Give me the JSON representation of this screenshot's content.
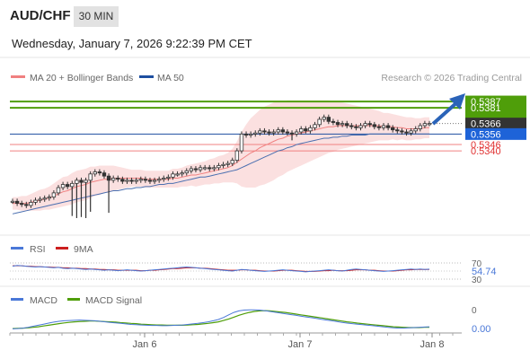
{
  "header": {
    "symbol": "AUD/CHF",
    "timeframe": "30 MIN",
    "datetime": "Wednesday, January 7, 2026 9:22:39 PM CET"
  },
  "colors": {
    "price_line": "#333333",
    "bollinger_fill": "#fadada",
    "ma20": "#f08080",
    "ma50": "#1e4fa0",
    "target_green": "#4f9e0a",
    "support_red": "#f08080",
    "current_price_box": "#333333",
    "ma50_box": "#1e63d8",
    "arrow": "#2a63b8",
    "rsi": "#4a78d8",
    "rsi_ma": "#cc1f1f",
    "macd": "#4a78d8",
    "macd_signal": "#4f9e0a"
  },
  "chart_data": [
    {
      "type": "candlestick",
      "panel": "price",
      "legend": [
        {
          "name": "MA 20 + Bollinger Bands",
          "color": "#f08080"
        },
        {
          "name": "MA 50",
          "color": "#1e4fa0"
        }
      ],
      "copyright": "Research © 2026 Trading Central",
      "x_ticks": [
        "Jan 6",
        "Jan 7",
        "Jan 8"
      ],
      "levels": [
        {
          "value": 0.5387,
          "label": "0.5387",
          "kind": "target",
          "color": "#4f9e0a"
        },
        {
          "value": 0.5381,
          "label": "0.5381",
          "kind": "target",
          "color": "#4f9e0a"
        },
        {
          "value": 0.5366,
          "label": "0.5366",
          "kind": "last",
          "color": "#333333"
        },
        {
          "value": 0.5356,
          "label": "0.5356",
          "kind": "ma50",
          "color": "#1e63d8"
        },
        {
          "value": 0.5346,
          "label": "0.5346",
          "kind": "support",
          "color": "#f08080"
        },
        {
          "value": 0.534,
          "label": "0.5340",
          "kind": "support",
          "color": "#f08080"
        }
      ],
      "close": [
        0.5292,
        0.529,
        0.5289,
        0.5288,
        0.5291,
        0.5293,
        0.5294,
        0.5295,
        0.5296,
        0.53,
        0.5305,
        0.5308,
        0.5306,
        0.5309,
        0.5312,
        0.531,
        0.5312,
        0.5318,
        0.532,
        0.5319,
        0.5316,
        0.5312,
        0.5314,
        0.5313,
        0.5311,
        0.5312,
        0.5311,
        0.5312,
        0.5313,
        0.5312,
        0.5311,
        0.5312,
        0.5313,
        0.5314,
        0.5315,
        0.5318,
        0.5318,
        0.5319,
        0.5321,
        0.5323,
        0.5322,
        0.5324,
        0.5324,
        0.5323,
        0.5324,
        0.5326,
        0.5327,
        0.5328,
        0.5331,
        0.534,
        0.5356,
        0.5355,
        0.5356,
        0.5357,
        0.5359,
        0.5358,
        0.5357,
        0.5358,
        0.536,
        0.5358,
        0.5357,
        0.5356,
        0.5358,
        0.5361,
        0.5359,
        0.5362,
        0.5365,
        0.537,
        0.5372,
        0.5368,
        0.5367,
        0.5365,
        0.5366,
        0.5364,
        0.5363,
        0.5362,
        0.5364,
        0.5366,
        0.5365,
        0.5363,
        0.5362,
        0.5364,
        0.5362,
        0.536,
        0.5359,
        0.5358,
        0.5357,
        0.5359,
        0.5361,
        0.5364,
        0.5366,
        0.5366
      ],
      "ma20": [
        0.529,
        0.529,
        0.529,
        0.529,
        0.5291,
        0.5292,
        0.5293,
        0.5294,
        0.5295,
        0.5297,
        0.5299,
        0.5301,
        0.5302,
        0.5304,
        0.5306,
        0.5307,
        0.5308,
        0.531,
        0.5311,
        0.5312,
        0.5313,
        0.5313,
        0.5314,
        0.5314,
        0.5314,
        0.5314,
        0.5314,
        0.5314,
        0.5314,
        0.5313,
        0.5313,
        0.5313,
        0.5313,
        0.5313,
        0.5313,
        0.5314,
        0.5314,
        0.5315,
        0.5316,
        0.5317,
        0.5317,
        0.5318,
        0.5319,
        0.532,
        0.5321,
        0.5322,
        0.5323,
        0.5324,
        0.5326,
        0.5329,
        0.5332,
        0.5335,
        0.5338,
        0.534,
        0.5343,
        0.5345,
        0.5347,
        0.5349,
        0.5351,
        0.5352,
        0.5354,
        0.5355,
        0.5356,
        0.5357,
        0.5358,
        0.5359,
        0.536,
        0.5361,
        0.5362,
        0.5363,
        0.5363,
        0.5364,
        0.5364,
        0.5364,
        0.5364,
        0.5364,
        0.5364,
        0.5364,
        0.5364,
        0.5364,
        0.5364,
        0.5363,
        0.5363,
        0.5363,
        0.5362,
        0.5362,
        0.5361,
        0.5361,
        0.5361,
        0.5361,
        0.5362,
        0.5362
      ],
      "ma50": [
        0.528,
        0.5281,
        0.5282,
        0.5283,
        0.5284,
        0.5285,
        0.5286,
        0.5287,
        0.5288,
        0.5289,
        0.529,
        0.5291,
        0.5292,
        0.5293,
        0.5294,
        0.5295,
        0.5296,
        0.5297,
        0.5298,
        0.5299,
        0.53,
        0.5301,
        0.5302,
        0.5302,
        0.5303,
        0.5304,
        0.5304,
        0.5305,
        0.5305,
        0.5306,
        0.5306,
        0.5307,
        0.5308,
        0.5308,
        0.5309,
        0.5309,
        0.531,
        0.5311,
        0.5312,
        0.5313,
        0.5314,
        0.5315,
        0.5315,
        0.5316,
        0.5317,
        0.5318,
        0.5319,
        0.532,
        0.5321,
        0.5322,
        0.5324,
        0.5326,
        0.5328,
        0.533,
        0.5332,
        0.5334,
        0.5336,
        0.5338,
        0.534,
        0.5341,
        0.5343,
        0.5344,
        0.5346,
        0.5347,
        0.5348,
        0.5349,
        0.535,
        0.5351,
        0.5352,
        0.5352,
        0.5353,
        0.5353,
        0.5354,
        0.5354,
        0.5355,
        0.5355,
        0.5355,
        0.5355,
        0.5356,
        0.5356,
        0.5356,
        0.5356,
        0.5356,
        0.5356,
        0.5356,
        0.5356,
        0.5356,
        0.5356,
        0.5356,
        0.5356,
        0.5356,
        0.5356
      ],
      "band_width": [
        0.0006,
        0.0006,
        0.0007,
        0.0007,
        0.0008,
        0.0009,
        0.001,
        0.001,
        0.0011,
        0.0012,
        0.0013,
        0.0014,
        0.0014,
        0.0015,
        0.0015,
        0.0015,
        0.0015,
        0.0015,
        0.0014,
        0.0014,
        0.0013,
        0.0013,
        0.0012,
        0.0011,
        0.001,
        0.0009,
        0.0008,
        0.0008,
        0.0008,
        0.0008,
        0.0008,
        0.0008,
        0.0008,
        0.0008,
        0.0008,
        0.0009,
        0.0009,
        0.0009,
        0.001,
        0.001,
        0.0011,
        0.0011,
        0.0011,
        0.0012,
        0.0012,
        0.0013,
        0.0013,
        0.0014,
        0.0016,
        0.002,
        0.0026,
        0.003,
        0.0033,
        0.0035,
        0.0036,
        0.0037,
        0.0037,
        0.0037,
        0.0036,
        0.0035,
        0.0034,
        0.0033,
        0.0032,
        0.0031,
        0.003,
        0.0029,
        0.0028,
        0.0027,
        0.0026,
        0.0025,
        0.0024,
        0.0023,
        0.0022,
        0.0021,
        0.002,
        0.0019,
        0.0018,
        0.0017,
        0.0016,
        0.0015,
        0.0014,
        0.0013,
        0.0013,
        0.0012,
        0.0012,
        0.0011,
        0.0011,
        0.0011,
        0.001,
        0.001,
        0.001,
        0.001
      ],
      "spikes": [
        {
          "index": 13,
          "low": 0.5278
        },
        {
          "index": 14,
          "low": 0.5276
        },
        {
          "index": 15,
          "low": 0.5277
        },
        {
          "index": 16,
          "low": 0.5276
        },
        {
          "index": 17,
          "low": 0.5282
        },
        {
          "index": 21,
          "low": 0.5281
        },
        {
          "index": 61,
          "low": 0.535
        }
      ]
    },
    {
      "type": "line",
      "panel": "rsi",
      "legend": [
        {
          "name": "RSI",
          "color": "#4a78d8"
        },
        {
          "name": "9MA",
          "color": "#cc1f1f"
        }
      ],
      "y_ticks": [
        "70",
        "30"
      ],
      "last_label": "54.74",
      "rsi": [
        62,
        64,
        63,
        62,
        61,
        60,
        61,
        60,
        59,
        58,
        59,
        57,
        56,
        57,
        56,
        55,
        54,
        55,
        54,
        53,
        52,
        53,
        52,
        51,
        52,
        53,
        52,
        51,
        50,
        51,
        52,
        53,
        54,
        55,
        56,
        57,
        58,
        59,
        60,
        59,
        58,
        57,
        56,
        55,
        54,
        53,
        52,
        51,
        50,
        52,
        54,
        53,
        52,
        51,
        50,
        49,
        50,
        51,
        52,
        53,
        52,
        51,
        50,
        49,
        48,
        49,
        50,
        51,
        52,
        53,
        52,
        51,
        50,
        52,
        54,
        55,
        54,
        53,
        52,
        51,
        50,
        49,
        50,
        51,
        52,
        53,
        54,
        55,
        54,
        55,
        54,
        54.74
      ],
      "rsi_ma": [
        63,
        63,
        63,
        62,
        62,
        61,
        61,
        60,
        60,
        59,
        59,
        58,
        58,
        57,
        57,
        56,
        56,
        55,
        55,
        54,
        54,
        53,
        53,
        52,
        52,
        52,
        52,
        52,
        51,
        51,
        52,
        52,
        53,
        54,
        55,
        56,
        56,
        57,
        58,
        58,
        58,
        57,
        57,
        56,
        55,
        54,
        53,
        52,
        52,
        52,
        53,
        53,
        52,
        52,
        51,
        50,
        50,
        50,
        51,
        52,
        52,
        52,
        51,
        50,
        49,
        49,
        49,
        50,
        51,
        51,
        52,
        51,
        51,
        51,
        52,
        53,
        53,
        53,
        52,
        52,
        51,
        50,
        50,
        50,
        51,
        52,
        53,
        53,
        54,
        54,
        54,
        54
      ]
    },
    {
      "type": "line",
      "panel": "macd",
      "legend": [
        {
          "name": "MACD",
          "color": "#4a78d8"
        },
        {
          "name": "MACD Signal",
          "color": "#4f9e0a"
        }
      ],
      "y_ticks": [
        "0"
      ],
      "last_label": "0.00",
      "macd": [
        0.2,
        0.3,
        0.5,
        0.8,
        1.2,
        1.6,
        2.0,
        2.4,
        2.8,
        3.1,
        3.3,
        3.4,
        3.5,
        3.6,
        3.5,
        3.4,
        3.3,
        3.1,
        2.9,
        2.7,
        2.5,
        2.3,
        2.1,
        1.9,
        1.8,
        1.7,
        1.6,
        1.5,
        1.5,
        1.4,
        1.4,
        1.5,
        1.6,
        1.7,
        1.9,
        2.1,
        2.3,
        2.6,
        2.9,
        3.3,
        3.8,
        4.6,
        5.6,
        6.5,
        7.1,
        7.4,
        7.5,
        7.5,
        7.4,
        7.2,
        6.9,
        6.6,
        6.3,
        6.0,
        5.7,
        5.4,
        5.1,
        4.8,
        4.5,
        4.2,
        3.9,
        3.6,
        3.3,
        3.0,
        2.7,
        2.4,
        2.2,
        2.0,
        1.8,
        1.6,
        1.4,
        1.2,
        1.0,
        0.8,
        0.6,
        0.5,
        0.5,
        0.6,
        0.7,
        0.8,
        0.9,
        1.0
      ],
      "signal": [
        0.3,
        0.4,
        0.5,
        0.6,
        0.8,
        1.0,
        1.3,
        1.6,
        1.9,
        2.2,
        2.5,
        2.7,
        2.9,
        3.0,
        3.1,
        3.2,
        3.2,
        3.1,
        3.0,
        2.9,
        2.8,
        2.6,
        2.5,
        2.3,
        2.2,
        2.0,
        1.9,
        1.8,
        1.7,
        1.7,
        1.6,
        1.6,
        1.6,
        1.6,
        1.7,
        1.8,
        1.9,
        2.1,
        2.3,
        2.6,
        2.9,
        3.4,
        4.0,
        4.7,
        5.4,
        6.0,
        6.5,
        6.9,
        7.1,
        7.2,
        7.1,
        6.9,
        6.7,
        6.5,
        6.2,
        5.9,
        5.6,
        5.3,
        5.0,
        4.7,
        4.4,
        4.1,
        3.8,
        3.5,
        3.2,
        2.9,
        2.7,
        2.4,
        2.2,
        2.0,
        1.8,
        1.6,
        1.4,
        1.2,
        1.0,
        0.9,
        0.8,
        0.7,
        0.7,
        0.7,
        0.8,
        0.8
      ]
    }
  ]
}
